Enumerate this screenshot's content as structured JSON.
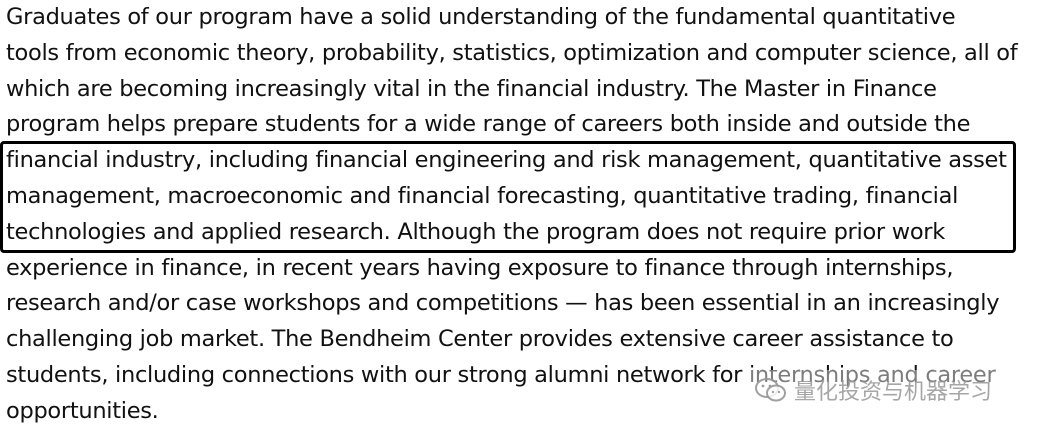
{
  "paragraph": {
    "lines": [
      "Graduates of our program have a solid understanding of the fundamental quantitative",
      "tools from economic theory, probability, statistics, optimization and computer science, all of",
      "which are becoming increasingly vital in the financial industry. The Master in Finance",
      "program helps prepare students for a wide range of careers both inside and outside the",
      "financial industry, including financial engineering and risk management, quantitative asset",
      "management, macroeconomic and financial forecasting, quantitative trading, financial",
      "technologies and applied research. Although the program does not require prior work",
      "experience in finance, in recent years having exposure to finance through internships,",
      "research and/or case workshops and competitions — has been essential in an increasingly",
      "challenging job market. The Bendheim Center provides extensive career assistance to",
      "students, including connections with our strong alumni network for internships and career",
      "opportunities."
    ]
  },
  "watermark": {
    "icon": "wechat-icon",
    "text": "量化投资与机器学习"
  }
}
